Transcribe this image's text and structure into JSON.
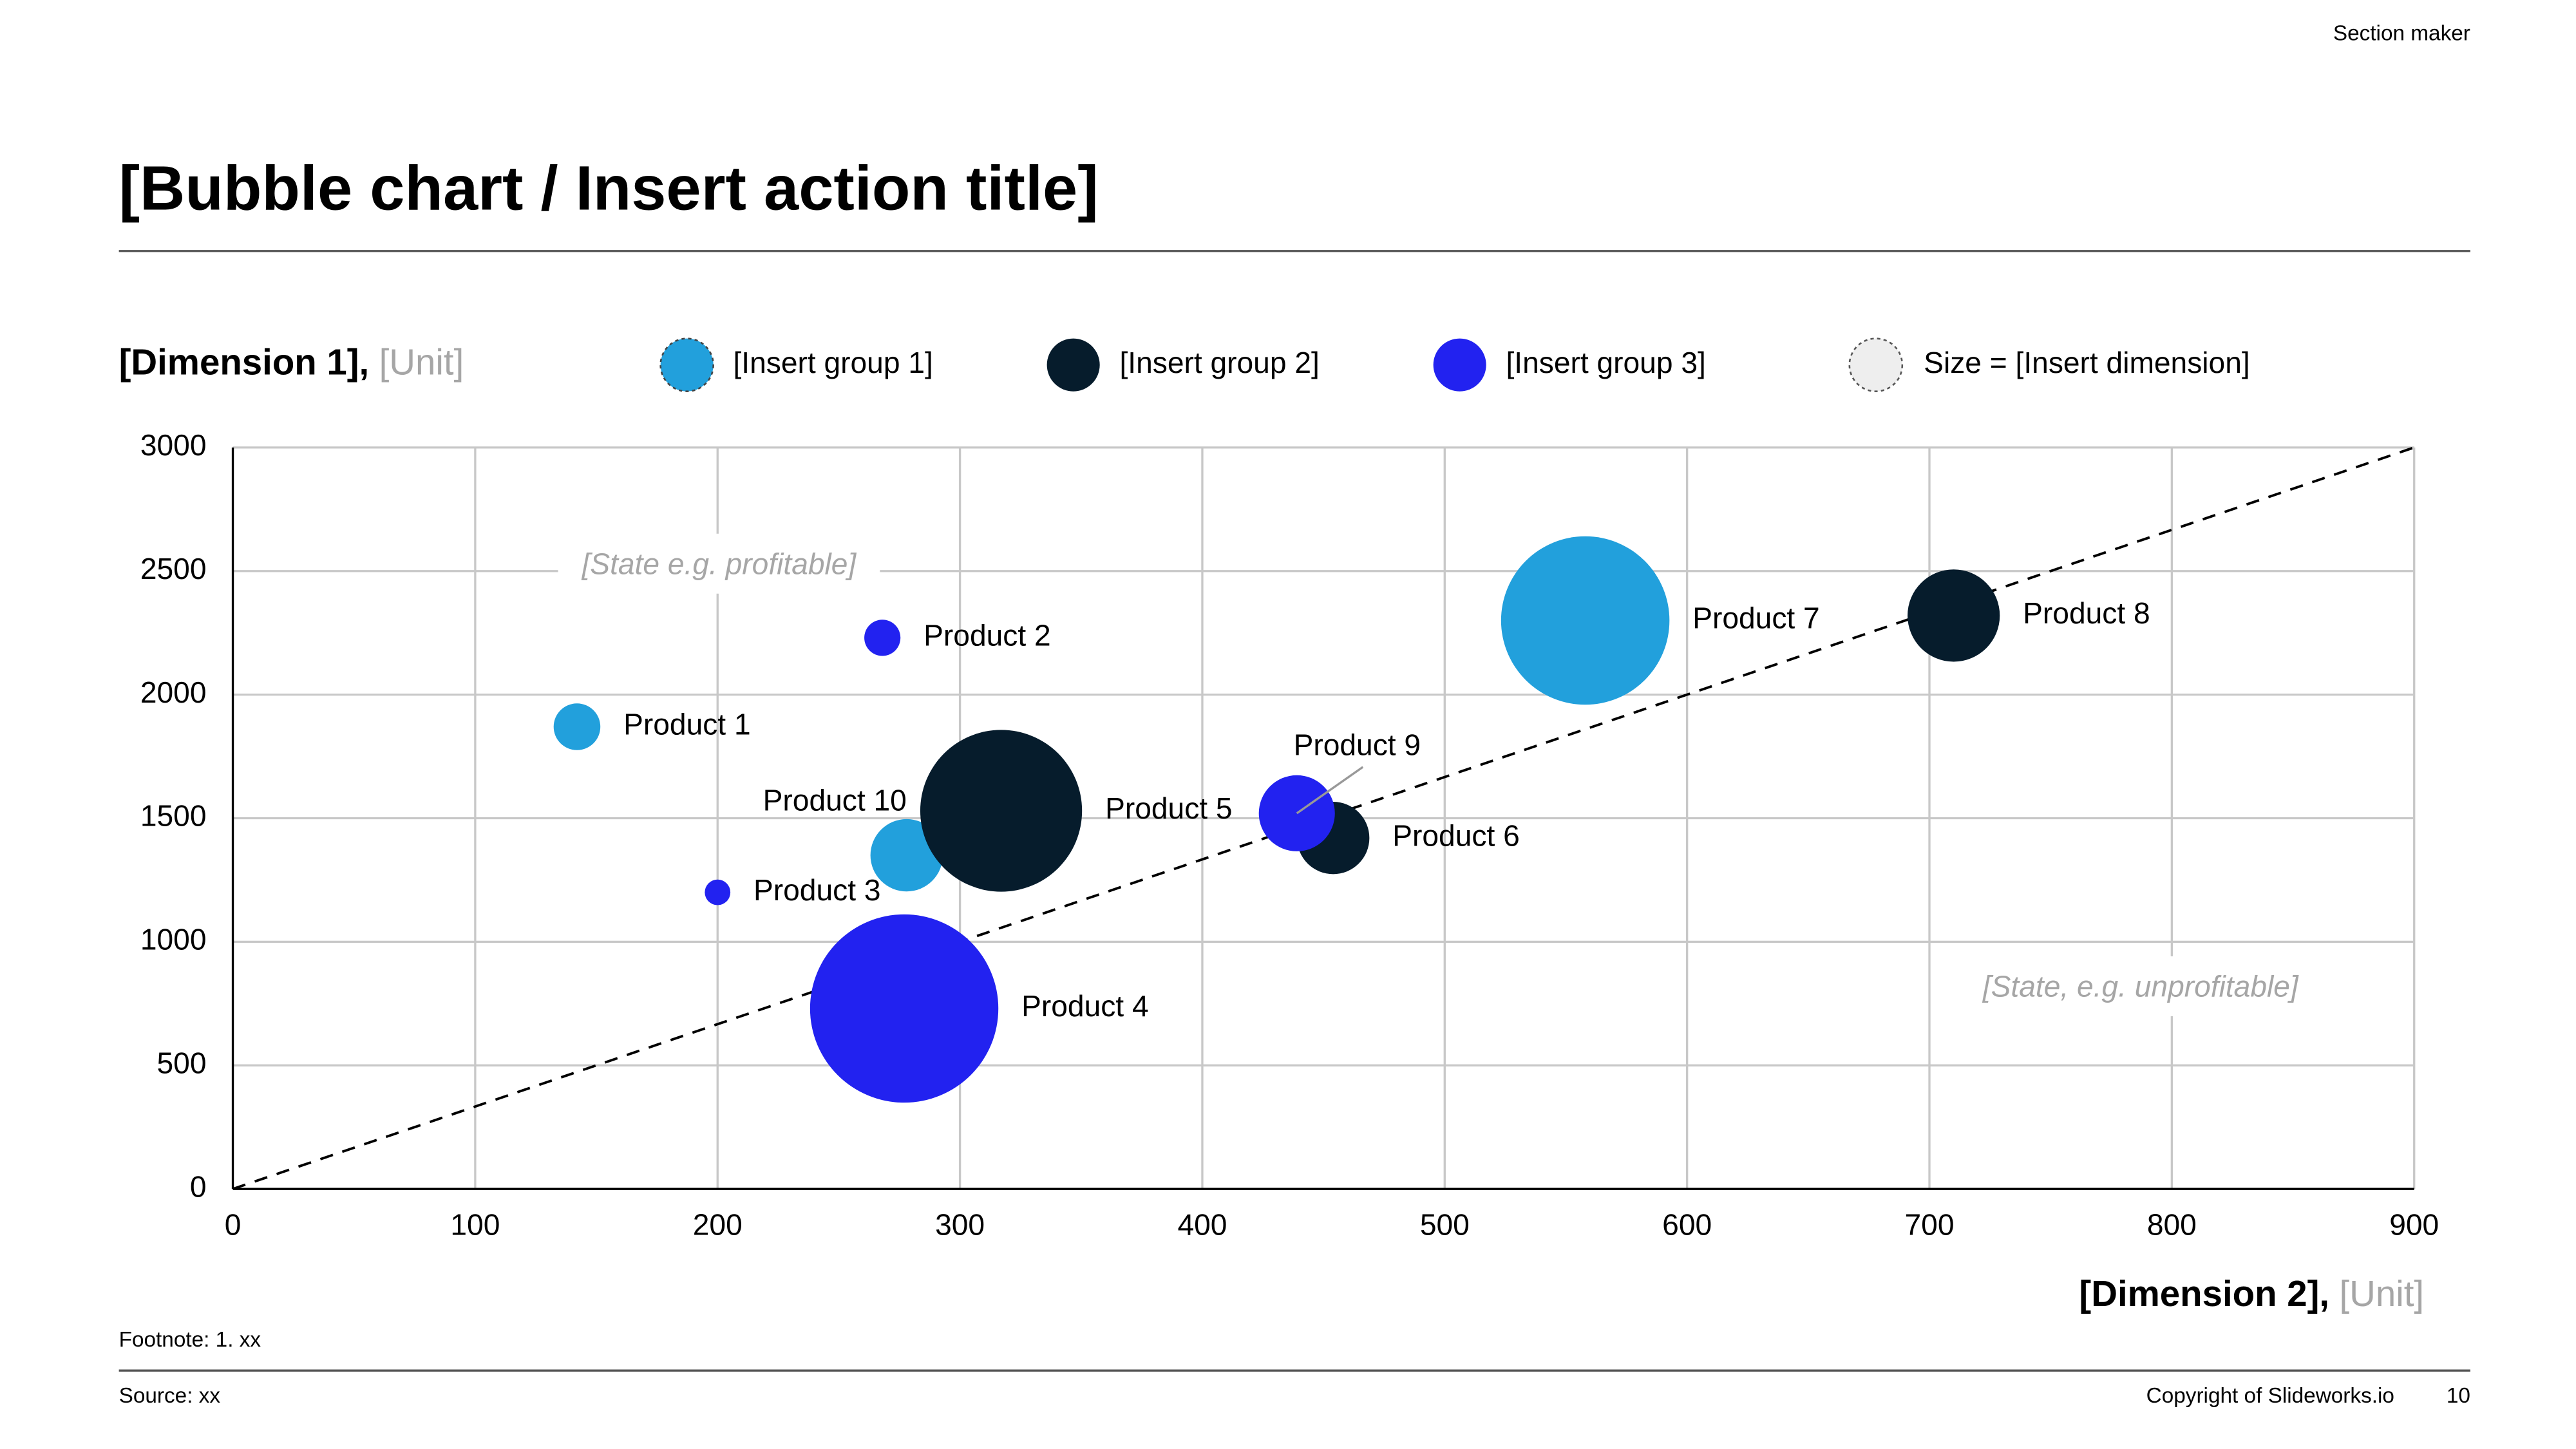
{
  "header": {
    "section": "Section maker",
    "title": "[Bubble chart / Insert action title]"
  },
  "chart_data": {
    "type": "bubble",
    "y_label": {
      "text": "[Dimension 1],",
      "unit": "[Unit]"
    },
    "x_label": {
      "text": "[Dimension 2],",
      "unit": "[Unit]"
    },
    "size_legend": "Size = [Insert dimension]",
    "xlim": [
      0,
      900
    ],
    "xticks": [
      0,
      100,
      200,
      300,
      400,
      500,
      600,
      700,
      800,
      900
    ],
    "ylim": [
      0,
      3000
    ],
    "yticks": [
      0,
      500,
      1000,
      1500,
      2000,
      2500,
      3000
    ],
    "grid": true,
    "series": [
      {
        "name": "[Insert group 1]",
        "color": "#22a0dc",
        "labels": [
          "Product 1",
          "Product 7",
          "Product 10"
        ],
        "x": [
          142,
          558,
          278
        ],
        "y": [
          1870,
          2300,
          1350
        ],
        "size": [
          20,
          260,
          48
        ]
      },
      {
        "name": "[Insert group 2]",
        "color": "#061c2c",
        "labels": [
          "Product 5",
          "Product 6",
          "Product 8"
        ],
        "x": [
          317,
          454,
          710
        ],
        "y": [
          1530,
          1420,
          2320
        ],
        "size": [
          240,
          48,
          78
        ]
      },
      {
        "name": "[Insert group 3]",
        "color": "#2222f0",
        "labels": [
          "Product 2",
          "Product 3",
          "Product 4",
          "Product 9"
        ],
        "x": [
          268,
          200,
          277,
          439
        ],
        "y": [
          2230,
          1200,
          730,
          1520
        ],
        "size": [
          12,
          6,
          325,
          53
        ]
      }
    ],
    "reference_line": {
      "x": [
        0,
        900
      ],
      "y": [
        0,
        3000
      ]
    },
    "annotations": [
      {
        "text": "[State e.g. profitable]",
        "x": 144,
        "y": 2520
      },
      {
        "text": "[State, e.g. unprofitable]",
        "x": 722,
        "y": 810
      }
    ]
  },
  "footer": {
    "footnote": "Footnote: 1. xx",
    "source": "Source: xx",
    "copyright": "Copyright of Slideworks.io",
    "page": 10
  }
}
